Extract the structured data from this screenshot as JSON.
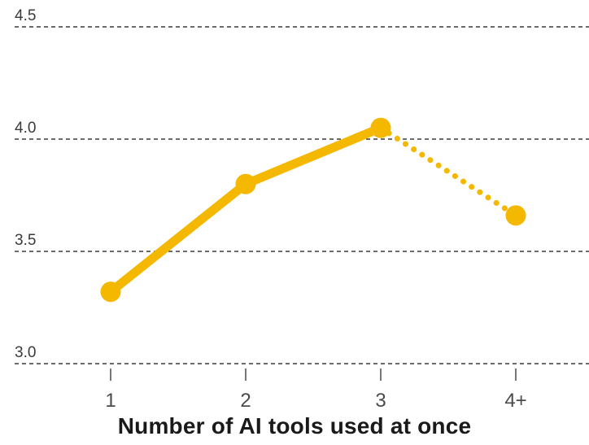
{
  "chart_data": {
    "type": "line",
    "categories": [
      "1",
      "2",
      "3",
      "4+"
    ],
    "series": [
      {
        "values": [
          3.32,
          3.8,
          4.05,
          3.66
        ],
        "segment_styles": [
          "solid",
          "solid",
          "dotted"
        ],
        "color": "#F5B800"
      }
    ],
    "yticks": [
      "3.0",
      "3.5",
      "4.0",
      "4.5"
    ],
    "ylim": [
      3.0,
      4.5
    ],
    "xlabel": "Number of AI tools used at once",
    "ylabel": "",
    "title": "",
    "grid": true,
    "grid_style": "dashed",
    "legend": "none"
  }
}
